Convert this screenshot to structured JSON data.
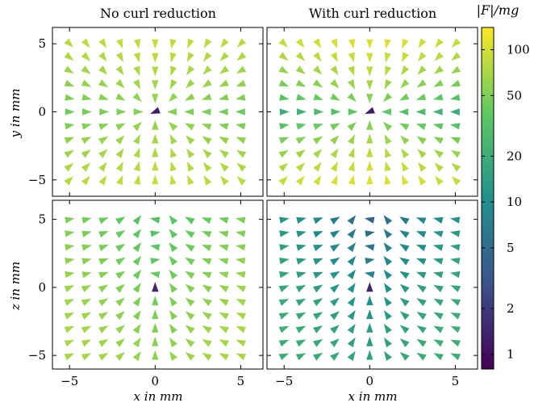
{
  "figure": {
    "col_titles": [
      "No curl reduction",
      "With curl reduction"
    ],
    "colorbar_title": "|F|/mg",
    "row_ylabels": [
      "y in mm",
      "z in mm"
    ],
    "xlabel": "x in mm"
  },
  "chart_data": {
    "type": "quiver",
    "grid": {
      "x_min": -5,
      "x_max": 5,
      "step": 1,
      "y_min": -5,
      "y_max": 5
    },
    "axes": {
      "xlim": [
        -6.0,
        6.3
      ],
      "xticks": [
        -5,
        0,
        5
      ],
      "top_row": {
        "ylim": [
          -6.2,
          6.2
        ],
        "yticks": [
          -5,
          0,
          5
        ]
      },
      "bottom_row": {
        "ylim": [
          -6.0,
          6.4
        ],
        "yticks": [
          -5,
          0,
          5
        ]
      }
    },
    "colorbar": {
      "scale": "log",
      "range": [
        0.8,
        140
      ],
      "ticks": [
        1,
        2,
        5,
        10,
        20,
        50,
        100
      ],
      "colormap": [
        "#440154",
        "#3b528b",
        "#21918c",
        "#5ec962",
        "#fde725"
      ]
    },
    "panels": [
      {
        "row": 0,
        "col": 0,
        "plane": "x-y",
        "curl_reduction": false,
        "magnitude_range_mg": [
          40,
          90
        ],
        "center_magnitude_mg": 1.2,
        "pattern": "converge"
      },
      {
        "row": 0,
        "col": 1,
        "plane": "x-y",
        "curl_reduction": true,
        "magnitude_range_mg": [
          12,
          110
        ],
        "center_magnitude_mg": 1.2,
        "pattern": "converge"
      },
      {
        "row": 1,
        "col": 0,
        "plane": "x-z",
        "curl_reduction": false,
        "magnitude_range_mg": [
          30,
          70
        ],
        "center_magnitude_mg": 1.5,
        "pattern": "levitate"
      },
      {
        "row": 1,
        "col": 1,
        "plane": "x-z",
        "curl_reduction": true,
        "magnitude_range_mg": [
          4,
          20
        ],
        "center_magnitude_mg": 1.5,
        "pattern": "levitate"
      }
    ]
  }
}
